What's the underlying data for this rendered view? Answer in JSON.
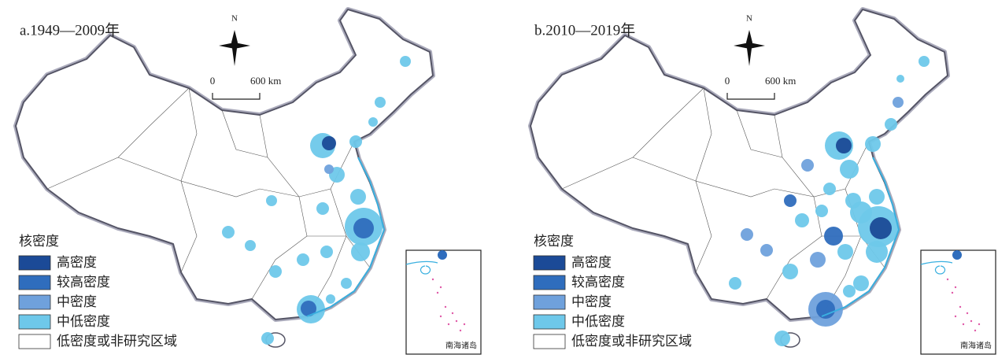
{
  "panels": [
    {
      "title": "a.1949—2009年",
      "north": "N",
      "scale": {
        "start": "0",
        "end": "600 km"
      },
      "legend": {
        "title": "核密度",
        "items": [
          {
            "label": "高密度",
            "color": "#1b4a97"
          },
          {
            "label": "较高密度",
            "color": "#2f6dbd"
          },
          {
            "label": "中密度",
            "color": "#6fa1dc"
          },
          {
            "label": "中低密度",
            "color": "#6ec8ea"
          },
          {
            "label": "低密度或非研究区域",
            "color": "#ffffff"
          }
        ]
      },
      "inset_label": "南海诸岛"
    },
    {
      "title": "b.2010—2019年",
      "north": "N",
      "scale": {
        "start": "0",
        "end": "600 km"
      },
      "legend": {
        "title": "核密度",
        "items": [
          {
            "label": "高密度",
            "color": "#1b4a97"
          },
          {
            "label": "较高密度",
            "color": "#2f6dbd"
          },
          {
            "label": "中密度",
            "color": "#6fa1dc"
          },
          {
            "label": "中低密度",
            "color": "#6ec8ea"
          },
          {
            "label": "低密度或非研究区域",
            "color": "#ffffff"
          }
        ]
      },
      "inset_label": "南海诸岛"
    }
  ]
}
